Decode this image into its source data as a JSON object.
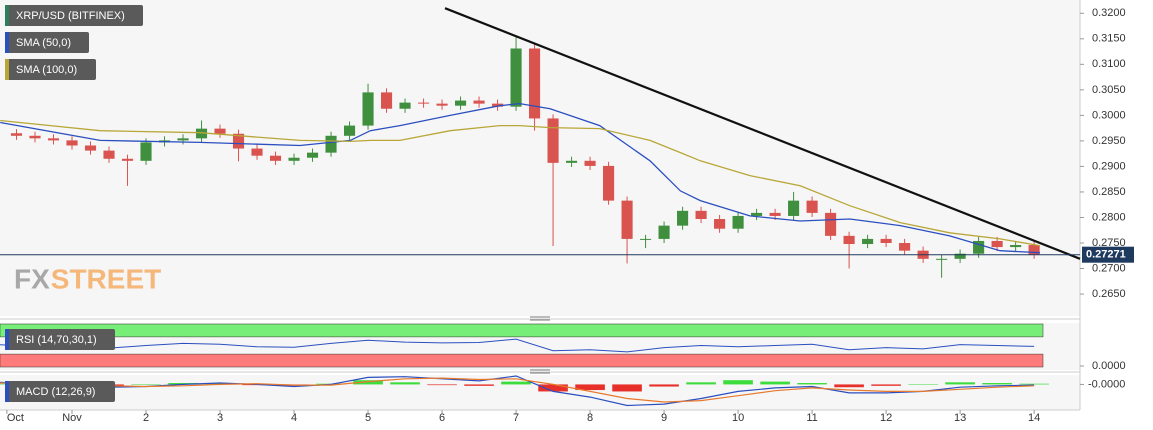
{
  "chart_data": [
    {
      "type": "candlestick",
      "title": "XRP/USD (BITFINEX)",
      "x": [
        0.25,
        0.5,
        0.75,
        1,
        1.25,
        1.5,
        1.75,
        2,
        2.25,
        2.5,
        2.75,
        3,
        3.25,
        3.5,
        3.75,
        4,
        4.25,
        4.5,
        4.75,
        5,
        5.25,
        5.5,
        5.75,
        6,
        6.25,
        6.5,
        6.75,
        7,
        7.25,
        7.5,
        7.75,
        8,
        8.25,
        8.5,
        8.75,
        9,
        9.25,
        9.5,
        9.75,
        10,
        10.25,
        10.5,
        10.75,
        11,
        11.25,
        11.5,
        11.75,
        12,
        12.25,
        12.5,
        12.75,
        13,
        13.25,
        13.5,
        13.75,
        14
      ],
      "open": [
        0.2965,
        0.296,
        0.2955,
        0.2951,
        0.2941,
        0.2931,
        0.2915,
        0.2911,
        0.2947,
        0.2951,
        0.2955,
        0.2974,
        0.2964,
        0.2935,
        0.2921,
        0.2911,
        0.2917,
        0.2927,
        0.296,
        0.298,
        0.3045,
        0.3013,
        0.3025,
        0.3023,
        0.3019,
        0.3029,
        0.3023,
        0.3017,
        0.3131,
        0.2994,
        0.2907,
        0.2911,
        0.2901,
        0.2833,
        0.2758,
        0.2758,
        0.2784,
        0.2813,
        0.2797,
        0.2778,
        0.2803,
        0.2809,
        0.2803,
        0.2833,
        0.2809,
        0.2764,
        0.2748,
        0.2758,
        0.275,
        0.2735,
        0.2719,
        0.2719,
        0.2729,
        0.2754,
        0.2742,
        0.2746
      ],
      "high": [
        0.2973,
        0.2968,
        0.2963,
        0.2959,
        0.2949,
        0.2939,
        0.2923,
        0.2955,
        0.2959,
        0.2963,
        0.299,
        0.2982,
        0.2972,
        0.2943,
        0.2929,
        0.2925,
        0.2935,
        0.2968,
        0.2988,
        0.3062,
        0.3053,
        0.3033,
        0.3033,
        0.3031,
        0.3037,
        0.3037,
        0.3031,
        0.3153,
        0.3139,
        0.3002,
        0.2919,
        0.2919,
        0.2909,
        0.2841,
        0.2766,
        0.2792,
        0.2821,
        0.2821,
        0.2805,
        0.2811,
        0.2817,
        0.2817,
        0.285,
        0.2841,
        0.2817,
        0.2772,
        0.2766,
        0.2766,
        0.2758,
        0.2743,
        0.2727,
        0.2737,
        0.2762,
        0.2762,
        0.2754,
        0.2754
      ],
      "low": [
        0.2952,
        0.2947,
        0.2943,
        0.2933,
        0.2923,
        0.2907,
        0.2862,
        0.2903,
        0.2939,
        0.2943,
        0.2947,
        0.2956,
        0.291,
        0.2913,
        0.2903,
        0.2903,
        0.2909,
        0.2919,
        0.2952,
        0.2972,
        0.3005,
        0.3005,
        0.3015,
        0.3011,
        0.3011,
        0.3015,
        0.3009,
        0.3009,
        0.297,
        0.2744,
        0.2899,
        0.2893,
        0.2825,
        0.271,
        0.274,
        0.275,
        0.2776,
        0.2789,
        0.277,
        0.277,
        0.2795,
        0.2795,
        0.2795,
        0.2801,
        0.2756,
        0.27,
        0.274,
        0.2742,
        0.2727,
        0.2711,
        0.2682,
        0.2711,
        0.2721,
        0.2734,
        0.2734,
        0.2719
      ],
      "close": [
        0.296,
        0.2955,
        0.2951,
        0.2941,
        0.2931,
        0.2915,
        0.2911,
        0.2947,
        0.2951,
        0.2955,
        0.2974,
        0.2964,
        0.2935,
        0.2921,
        0.2911,
        0.2917,
        0.2927,
        0.296,
        0.298,
        0.3045,
        0.3013,
        0.3025,
        0.3023,
        0.3019,
        0.3029,
        0.3023,
        0.3017,
        0.3131,
        0.2994,
        0.2907,
        0.2911,
        0.2901,
        0.2833,
        0.2758,
        0.2758,
        0.2784,
        0.2813,
        0.2797,
        0.2778,
        0.2803,
        0.2809,
        0.2803,
        0.2833,
        0.2809,
        0.2764,
        0.2748,
        0.2758,
        0.275,
        0.2735,
        0.2719,
        0.2719,
        0.2729,
        0.2754,
        0.2742,
        0.2746,
        0.2727
      ],
      "up_color": "#3f8f3f",
      "down_color": "#d9534f",
      "series": [
        {
          "name": "SMA (50,0)",
          "color": "#2b4fc0",
          "x": [
            0.03,
            1.38,
            2.73,
            4.08,
            4.76,
            5.03,
            5.43,
            6.11,
            6.78,
            7.05,
            7.46,
            8.13,
            8.81,
            9.22,
            9.49,
            10.16,
            10.84,
            11.51,
            12.19,
            12.86,
            13.54,
            14.08
          ],
          "values": [
            0.2986,
            0.2951,
            0.2947,
            0.2941,
            0.2951,
            0.297,
            0.298,
            0.3,
            0.3019,
            0.3023,
            0.3013,
            0.298,
            0.2911,
            0.2852,
            0.2833,
            0.2803,
            0.2793,
            0.2797,
            0.2784,
            0.2764,
            0.2735,
            0.2731
          ]
        },
        {
          "name": "SMA (100,0)",
          "color": "#b8a737",
          "x": [
            0.03,
            1.38,
            2.73,
            4.08,
            4.76,
            5.03,
            5.43,
            6.11,
            6.78,
            7.05,
            7.46,
            8.13,
            8.81,
            9.22,
            9.49,
            10.16,
            10.84,
            11.51,
            12.19,
            12.86,
            13.54,
            14.08
          ],
          "values": [
            0.299,
            0.297,
            0.2966,
            0.2951,
            0.2949,
            0.2951,
            0.2951,
            0.297,
            0.298,
            0.298,
            0.2976,
            0.2974,
            0.2951,
            0.2927,
            0.2911,
            0.2882,
            0.2862,
            0.2823,
            0.279,
            0.277,
            0.2758,
            0.2745
          ]
        }
      ],
      "trendline": {
        "x": [
          6.04,
          14.62
        ],
        "y": [
          0.321,
          0.2719
        ]
      },
      "last_price": 0.27271,
      "xlim": [
        0.027,
        14.62
      ],
      "xticks": [
        {
          "value": 0.12,
          "label": "Oct"
        },
        {
          "value": 1,
          "label": "Nov"
        },
        2,
        3,
        4,
        5,
        6,
        7,
        8,
        9,
        10,
        11,
        12,
        13,
        14
      ],
      "ylim": [
        0.2607,
        0.3226
      ],
      "yticks": [
        {
          "value": 0.265,
          "label": "0.2650"
        },
        {
          "value": 0.27,
          "label": "0.2700"
        },
        {
          "value": 0.275,
          "label": "0.2750"
        },
        {
          "value": 0.28,
          "label": "0.2800"
        },
        {
          "value": 0.285,
          "label": "0.2850"
        },
        {
          "value": 0.29,
          "label": "0.2900"
        },
        {
          "value": 0.295,
          "label": "0.2950"
        },
        {
          "value": 0.3,
          "label": "0.3000"
        },
        {
          "value": 0.305,
          "label": "0.3050"
        },
        {
          "value": 0.31,
          "label": "0.3100"
        },
        {
          "value": 0.315,
          "label": "0.3150"
        },
        {
          "value": 0.32,
          "label": "0.3200"
        }
      ],
      "watermark": [
        "FX",
        "STREET"
      ]
    },
    {
      "type": "rsi",
      "title": "RSI (14,70,30,1)",
      "x": [
        0,
        0.5,
        1,
        1.5,
        2,
        2.5,
        3,
        3.5,
        4,
        4.5,
        5,
        5.5,
        6,
        6.5,
        7,
        7.5,
        8,
        8.5,
        9,
        9.5,
        10,
        10.5,
        11,
        11.5,
        12,
        12.5,
        13,
        13.5,
        14
      ],
      "values": [
        52,
        48,
        45,
        44,
        50,
        55,
        53,
        47,
        46,
        55,
        62,
        58,
        56,
        57,
        65,
        38,
        40,
        35,
        45,
        50,
        47,
        50,
        53,
        40,
        45,
        42,
        52,
        50,
        48
      ],
      "color": "#2b4fc0",
      "upper": 70,
      "lower": 30,
      "upper_color": "#77ee77",
      "lower_color": "#ff7b7b",
      "ylim": [
        0,
        100
      ],
      "yticks": [
        {
          "value": 0,
          "label": "0.0000"
        }
      ]
    },
    {
      "type": "macd",
      "title": "MACD (12,26,9)",
      "x": [
        0,
        0.5,
        1,
        1.5,
        2,
        2.5,
        3,
        3.5,
        4,
        4.5,
        5,
        5.5,
        6,
        6.5,
        7,
        7.5,
        8,
        8.5,
        9,
        9.5,
        10,
        10.5,
        11,
        11.5,
        12,
        12.5,
        13,
        13.5,
        14
      ],
      "series": [
        {
          "color": "#2b4fc0",
          "values": [
            0.0003,
            0.0001,
            -0.0002,
            -0.0004,
            -0.0003,
            0.0,
            0.0002,
            0.0,
            -0.0003,
            0.0,
            0.001,
            0.0011,
            0.0008,
            0.0005,
            0.0012,
            -0.001,
            -0.0018,
            -0.003,
            -0.0028,
            -0.002,
            -0.001,
            -0.0005,
            -0.0003,
            -0.0012,
            -0.0012,
            -0.001,
            -0.0004,
            -0.0002,
            -0.0001
          ]
        },
        {
          "color": "#e8792c",
          "values": [
            0.0002,
            0.0002,
            0.0,
            -0.0002,
            -0.0003,
            -0.0002,
            0.0,
            0.0001,
            -0.0001,
            -0.0001,
            0.0004,
            0.0008,
            0.0009,
            0.0007,
            0.0008,
            0.0,
            -0.001,
            -0.002,
            -0.0025,
            -0.0023,
            -0.0016,
            -0.0009,
            -0.0005,
            -0.0008,
            -0.001,
            -0.001,
            -0.0007,
            -0.0004,
            -0.0002
          ]
        }
      ],
      "histogram": [
        0.0001,
        -0.0001,
        -0.0002,
        -0.0002,
        0.0,
        0.0002,
        0.0002,
        -0.0001,
        -0.0002,
        0.0001,
        0.0006,
        0.0003,
        -0.0001,
        -0.0002,
        0.0004,
        -0.001,
        -0.0008,
        -0.001,
        -0.0003,
        0.0003,
        0.0006,
        0.0004,
        0.0002,
        -0.0004,
        -0.0002,
        0.0,
        0.0003,
        0.0002,
        0.0001
      ],
      "hist_up_color": "#3ddc3d",
      "hist_down_color": "#e8302a",
      "ylim": [
        -0.0035,
        0.0012
      ],
      "yticks": [
        {
          "value": 0,
          "label": "-0.0000"
        }
      ]
    }
  ]
}
